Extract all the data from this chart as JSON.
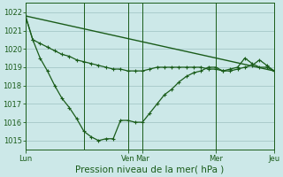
{
  "background_color": "#cce8e8",
  "grid_color": "#aacccc",
  "line_color": "#1a5c1a",
  "title": "Pression niveau de la mer( hPa )",
  "ylim": [
    1014.5,
    1022.5
  ],
  "yticks": [
    1015,
    1016,
    1017,
    1018,
    1019,
    1020,
    1021,
    1022
  ],
  "xlim": [
    0,
    408
  ],
  "day_positions": [
    0,
    96,
    168,
    192,
    312,
    408
  ],
  "day_labels": [
    "Lun",
    "",
    "Ven",
    "Mar",
    "Mer",
    "Jeu"
  ],
  "series1_x": [
    0,
    12,
    24,
    36,
    48,
    60,
    72,
    84,
    96,
    108,
    120,
    132,
    144,
    156,
    168,
    180,
    192,
    204,
    216,
    228,
    240,
    252,
    264,
    276,
    288,
    300,
    312,
    324,
    336,
    348,
    360,
    372,
    384,
    396,
    408
  ],
  "series1_y": [
    1021.8,
    1020.5,
    1020.3,
    1020.1,
    1019.9,
    1019.7,
    1019.6,
    1019.4,
    1019.3,
    1019.2,
    1019.1,
    1019.0,
    1018.9,
    1018.9,
    1018.8,
    1018.8,
    1018.8,
    1018.9,
    1019.0,
    1019.0,
    1019.0,
    1019.0,
    1019.0,
    1019.0,
    1019.0,
    1018.9,
    1018.9,
    1018.8,
    1018.8,
    1018.9,
    1019.0,
    1019.1,
    1019.4,
    1019.1,
    1018.8
  ],
  "series2_x": [
    0,
    12,
    24,
    36,
    48,
    60,
    72,
    84,
    96,
    108,
    120,
    132,
    144,
    156,
    168,
    180,
    192,
    204,
    216,
    228,
    240,
    252,
    264,
    276,
    288,
    300,
    312,
    324,
    336,
    348,
    360,
    372,
    384,
    396,
    408
  ],
  "series2_y": [
    1021.8,
    1020.5,
    1019.5,
    1018.8,
    1018.0,
    1017.3,
    1016.8,
    1016.2,
    1015.5,
    1015.2,
    1015.0,
    1015.1,
    1015.1,
    1016.1,
    1016.1,
    1016.0,
    1016.0,
    1016.5,
    1017.0,
    1017.5,
    1017.8,
    1018.2,
    1018.5,
    1018.7,
    1018.8,
    1019.0,
    1019.0,
    1018.8,
    1018.9,
    1019.0,
    1019.5,
    1019.2,
    1019.0,
    1019.0,
    1018.8
  ],
  "series3_x": [
    0,
    408
  ],
  "series3_y": [
    1021.8,
    1018.8
  ],
  "vline_positions": [
    96,
    168,
    192,
    312,
    408
  ],
  "title_fontsize": 7.5,
  "tick_fontsize": 6
}
